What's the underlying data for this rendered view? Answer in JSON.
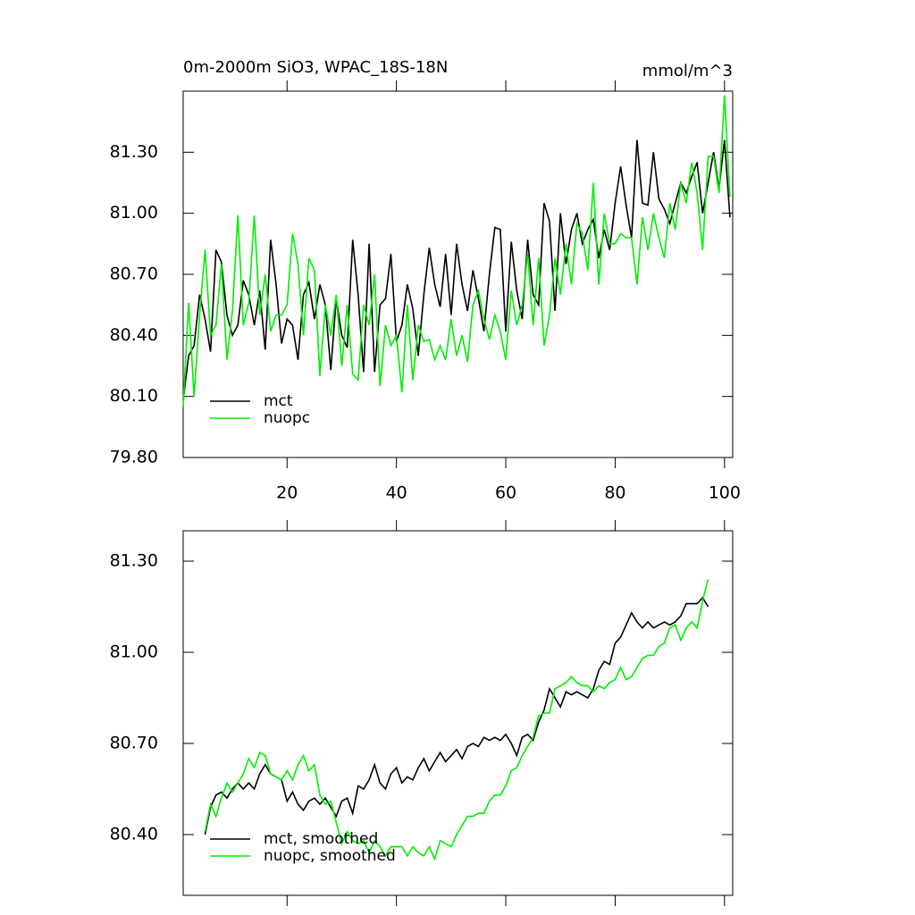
{
  "chart_data": [
    {
      "type": "line",
      "title": "0m-2000m SiO3, WPAC_18S-18N",
      "subtitle": "mmol/m^3",
      "x": [
        1,
        2,
        3,
        4,
        5,
        6,
        7,
        8,
        9,
        10,
        11,
        12,
        13,
        14,
        15,
        16,
        17,
        18,
        19,
        20,
        21,
        22,
        23,
        24,
        25,
        26,
        27,
        28,
        29,
        30,
        31,
        32,
        33,
        34,
        35,
        36,
        37,
        38,
        39,
        40,
        41,
        42,
        43,
        44,
        45,
        46,
        47,
        48,
        49,
        50,
        51,
        52,
        53,
        54,
        55,
        56,
        57,
        58,
        59,
        60,
        61,
        62,
        63,
        64,
        65,
        66,
        67,
        68,
        69,
        70,
        71,
        72,
        73,
        74,
        75,
        76,
        77,
        78,
        79,
        80,
        81,
        82,
        83,
        84,
        85,
        86,
        87,
        88,
        89,
        90,
        91,
        92,
        93,
        94,
        95,
        96,
        97,
        98,
        99,
        100,
        101
      ],
      "series": [
        {
          "name": "mct",
          "color": "#000000",
          "values": [
            80.08,
            80.3,
            80.35,
            80.6,
            80.48,
            80.32,
            80.82,
            80.76,
            80.5,
            80.4,
            80.45,
            80.67,
            80.6,
            80.45,
            80.62,
            80.33,
            80.87,
            80.65,
            80.36,
            80.48,
            80.45,
            80.28,
            80.6,
            80.66,
            80.48,
            80.65,
            80.55,
            80.23,
            80.58,
            80.4,
            80.34,
            80.87,
            80.6,
            80.22,
            80.85,
            80.22,
            80.55,
            80.58,
            80.8,
            80.37,
            80.45,
            80.65,
            80.53,
            80.3,
            80.6,
            80.83,
            80.65,
            80.54,
            80.8,
            80.5,
            80.85,
            80.65,
            80.52,
            80.72,
            80.58,
            80.42,
            80.7,
            80.93,
            80.92,
            80.42,
            80.86,
            80.62,
            80.48,
            80.87,
            80.6,
            80.55,
            81.05,
            80.96,
            80.52,
            81.0,
            80.75,
            80.92,
            81.0,
            80.85,
            80.92,
            80.97,
            80.78,
            80.92,
            80.82,
            81.05,
            81.23,
            81.04,
            80.88,
            81.36,
            81.05,
            81.04,
            81.3,
            81.07,
            81.02,
            80.95,
            81.05,
            81.15,
            81.1,
            81.18,
            81.25,
            81.0,
            81.15,
            81.3,
            81.12,
            81.36,
            80.98
          ]
        },
        {
          "name": "nuopc",
          "color": "#00ee00",
          "values": [
            80.05,
            80.56,
            80.1,
            80.5,
            80.82,
            80.4,
            80.45,
            80.75,
            80.28,
            80.52,
            80.99,
            80.45,
            80.56,
            80.99,
            80.5,
            80.7,
            80.42,
            80.5,
            80.5,
            80.55,
            80.9,
            80.75,
            80.4,
            80.78,
            80.72,
            80.2,
            80.55,
            80.4,
            80.6,
            80.25,
            80.55,
            80.21,
            80.18,
            80.55,
            80.45,
            80.7,
            80.15,
            80.45,
            80.35,
            80.4,
            80.12,
            80.55,
            80.18,
            80.45,
            80.37,
            80.38,
            80.28,
            80.35,
            80.28,
            80.48,
            80.3,
            80.4,
            80.27,
            80.55,
            80.62,
            80.48,
            80.38,
            80.5,
            80.42,
            80.28,
            80.62,
            80.45,
            80.55,
            80.8,
            80.45,
            80.78,
            80.35,
            80.5,
            80.78,
            80.6,
            80.85,
            80.65,
            80.95,
            80.9,
            80.72,
            81.15,
            80.65,
            81.0,
            80.85,
            80.85,
            80.9,
            80.88,
            80.88,
            80.65,
            80.98,
            80.82,
            81.0,
            80.88,
            80.78,
            81.05,
            80.92,
            81.15,
            81.05,
            81.25,
            81.1,
            80.82,
            81.28,
            81.28,
            81.1,
            81.58,
            81.08
          ]
        }
      ],
      "xlim": [
        1,
        101.5
      ],
      "xticks": [
        20,
        40,
        60,
        80,
        100
      ],
      "ylim": [
        79.8,
        81.6
      ],
      "yticks": [
        {
          "value": 79.8,
          "label": "79.80"
        },
        {
          "value": 80.1,
          "label": "80.10"
        },
        {
          "value": 80.4,
          "label": "80.40"
        },
        {
          "value": 80.7,
          "label": "80.70"
        },
        {
          "value": 81.0,
          "label": "81.00"
        },
        {
          "value": 81.3,
          "label": "81.30"
        }
      ],
      "legend": "lower left"
    },
    {
      "type": "line",
      "x": [
        5,
        6,
        7,
        8,
        9,
        10,
        11,
        12,
        13,
        14,
        15,
        16,
        17,
        18,
        19,
        20,
        21,
        22,
        23,
        24,
        25,
        26,
        27,
        28,
        29,
        30,
        31,
        32,
        33,
        34,
        35,
        36,
        37,
        38,
        39,
        40,
        41,
        42,
        43,
        44,
        45,
        46,
        47,
        48,
        49,
        50,
        51,
        52,
        53,
        54,
        55,
        56,
        57,
        58,
        59,
        60,
        61,
        62,
        63,
        64,
        65,
        66,
        67,
        68,
        69,
        70,
        71,
        72,
        73,
        74,
        75,
        76,
        77,
        78,
        79,
        80,
        81,
        82,
        83,
        84,
        85,
        86,
        87,
        88,
        89,
        90,
        91,
        92,
        93,
        94,
        95,
        96,
        97
      ],
      "series": [
        {
          "name": "mct, smoothed",
          "color": "#000000",
          "values": [
            80.4,
            80.49,
            80.53,
            80.54,
            80.52,
            80.55,
            80.57,
            80.55,
            80.57,
            80.55,
            80.6,
            80.63,
            80.6,
            80.59,
            80.58,
            80.51,
            80.54,
            80.5,
            80.48,
            80.51,
            80.52,
            80.5,
            80.52,
            80.49,
            80.46,
            80.51,
            80.52,
            80.47,
            80.56,
            80.55,
            80.58,
            80.63,
            80.57,
            80.55,
            80.6,
            80.62,
            80.57,
            80.59,
            80.58,
            80.62,
            80.65,
            80.61,
            80.64,
            80.67,
            80.64,
            80.66,
            80.68,
            80.65,
            80.69,
            80.7,
            80.69,
            80.72,
            80.71,
            80.72,
            80.71,
            80.73,
            80.7,
            80.66,
            80.72,
            80.73,
            80.71,
            80.77,
            80.81,
            80.88,
            80.85,
            80.82,
            80.87,
            80.86,
            80.87,
            80.86,
            80.85,
            80.88,
            80.94,
            80.97,
            80.96,
            81.03,
            81.05,
            81.09,
            81.13,
            81.1,
            81.08,
            81.1,
            81.08,
            81.09,
            81.1,
            81.09,
            81.1,
            81.12,
            81.16,
            81.16,
            81.16,
            81.18,
            81.15
          ]
        },
        {
          "name": "nuopc, smoothed",
          "color": "#00ee00",
          "values": [
            80.41,
            80.5,
            80.46,
            80.52,
            80.57,
            80.54,
            80.57,
            80.6,
            80.65,
            80.62,
            80.67,
            80.66,
            80.6,
            80.59,
            80.58,
            80.61,
            80.58,
            80.63,
            80.66,
            80.61,
            80.63,
            80.53,
            80.5,
            80.51,
            80.44,
            80.37,
            80.41,
            80.38,
            80.37,
            80.38,
            80.34,
            80.38,
            80.36,
            80.33,
            80.36,
            80.36,
            80.36,
            80.33,
            80.36,
            80.34,
            80.33,
            80.36,
            80.32,
            80.38,
            80.37,
            80.36,
            80.4,
            80.43,
            80.46,
            80.46,
            80.47,
            80.47,
            80.51,
            80.53,
            80.53,
            80.56,
            80.61,
            80.62,
            80.66,
            80.69,
            80.72,
            80.79,
            80.8,
            80.8,
            80.88,
            80.89,
            80.9,
            80.92,
            80.9,
            80.89,
            80.89,
            80.87,
            80.89,
            80.88,
            80.9,
            80.91,
            80.95,
            80.91,
            80.92,
            80.95,
            80.98,
            80.99,
            80.99,
            81.02,
            81.03,
            81.08,
            81.09,
            81.04,
            81.08,
            81.1,
            81.08,
            81.17,
            81.24
          ]
        }
      ],
      "xlim": [
        1,
        101.5
      ],
      "ylim": [
        80.2,
        81.4
      ],
      "yticks": [
        {
          "value": 80.4,
          "label": "80.40"
        },
        {
          "value": 80.7,
          "label": "80.70"
        },
        {
          "value": 81.0,
          "label": "81.00"
        },
        {
          "value": 81.3,
          "label": "81.30"
        }
      ],
      "legend": "lower left"
    }
  ]
}
